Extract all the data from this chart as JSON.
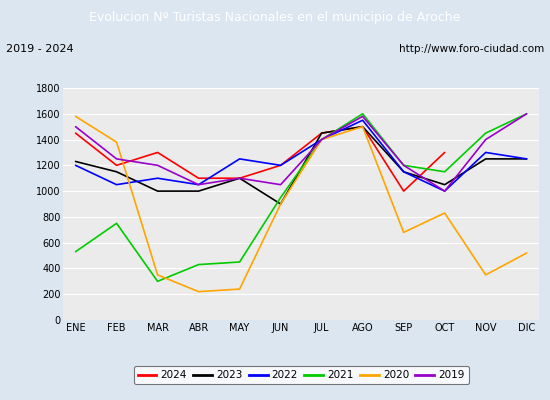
{
  "title": "Evolucion Nº Turistas Nacionales en el municipio de Aroche",
  "subtitle_left": "2019 - 2024",
  "subtitle_right": "http://www.foro-ciudad.com",
  "title_bg_color": "#4472c4",
  "title_text_color": "#ffffff",
  "plot_bg_color": "#ebebeb",
  "outer_bg_color": "#dce6f1",
  "months": [
    "ENE",
    "FEB",
    "MAR",
    "ABR",
    "MAY",
    "JUN",
    "JUL",
    "AGO",
    "SEP",
    "OCT",
    "NOV",
    "DIC"
  ],
  "ylim": [
    0,
    1800
  ],
  "yticks": [
    0,
    200,
    400,
    600,
    800,
    1000,
    1200,
    1400,
    1600,
    1800
  ],
  "series": {
    "2024": {
      "color": "#ff0000",
      "data": [
        1450,
        1200,
        1300,
        1100,
        1100,
        1200,
        1450,
        1500,
        1000,
        1300,
        null,
        null
      ]
    },
    "2023": {
      "color": "#000000",
      "data": [
        1230,
        1150,
        1000,
        1000,
        1100,
        900,
        1450,
        1500,
        1150,
        1050,
        1250,
        1250
      ]
    },
    "2022": {
      "color": "#0000ff",
      "data": [
        1200,
        1050,
        1100,
        1050,
        1250,
        1200,
        1400,
        1550,
        1150,
        1000,
        1300,
        1250
      ]
    },
    "2021": {
      "color": "#00cc00",
      "data": [
        530,
        750,
        300,
        430,
        450,
        950,
        1400,
        1600,
        1200,
        1150,
        1450,
        1600
      ]
    },
    "2020": {
      "color": "#ffa500",
      "data": [
        1580,
        1380,
        350,
        220,
        240,
        900,
        1400,
        1500,
        680,
        830,
        350,
        520
      ]
    },
    "2019": {
      "color": "#9900cc",
      "data": [
        1500,
        1250,
        1200,
        1050,
        1100,
        1050,
        1400,
        1580,
        1200,
        1000,
        1400,
        1600
      ]
    }
  },
  "legend_order": [
    "2024",
    "2023",
    "2022",
    "2021",
    "2020",
    "2019"
  ]
}
